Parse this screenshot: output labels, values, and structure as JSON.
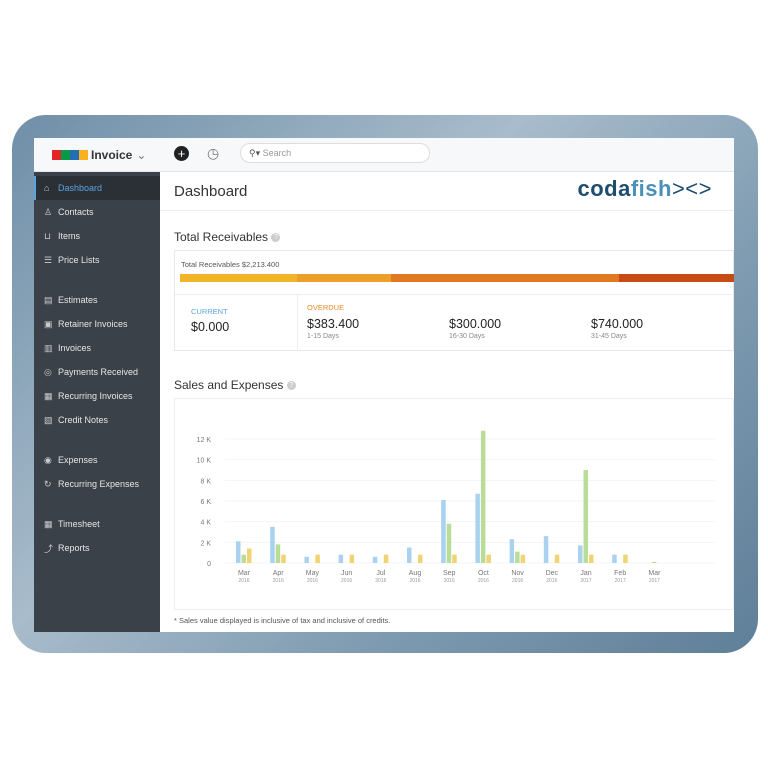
{
  "app": {
    "brand": "Invoice",
    "logo": "codafish><>",
    "search_placeholder": "Search"
  },
  "sidebar": {
    "items": [
      {
        "label": "Dashboard",
        "icon": "home-icon",
        "active": true
      },
      {
        "label": "Contacts",
        "icon": "user-icon"
      },
      {
        "label": "Items",
        "icon": "basket-icon"
      },
      {
        "label": "Price Lists",
        "icon": "list-icon"
      },
      {
        "label": "Estimates",
        "icon": "estimate-icon"
      },
      {
        "label": "Retainer Invoices",
        "icon": "retainer-icon"
      },
      {
        "label": "Invoices",
        "icon": "invoice-icon"
      },
      {
        "label": "Payments Received",
        "icon": "payment-icon"
      },
      {
        "label": "Recurring Invoices",
        "icon": "recurring-icon"
      },
      {
        "label": "Credit Notes",
        "icon": "credit-note-icon"
      },
      {
        "label": "Expenses",
        "icon": "expense-icon"
      },
      {
        "label": "Recurring Expenses",
        "icon": "recurring-expense-icon"
      },
      {
        "label": "Timesheet",
        "icon": "calendar-icon"
      },
      {
        "label": "Reports",
        "icon": "chart-icon"
      }
    ]
  },
  "main": {
    "title": "Dashboard",
    "receivables": {
      "heading": "Total Receivables",
      "total_label": "Total Receivables $2,213.400",
      "current_label": "CURRENT",
      "current_value": "$0.000",
      "overdue_label": "OVERDUE",
      "buckets": [
        {
          "value": "$383.400",
          "range": "1-15 Days"
        },
        {
          "value": "$300.000",
          "range": "16-30 Days"
        },
        {
          "value": "$740.000",
          "range": "31-45 Days"
        }
      ],
      "colors": {
        "current": "#5aa4e0",
        "overdue": "#e8892c"
      }
    },
    "sales": {
      "heading": "Sales and Expenses",
      "footnote": "* Sales value displayed is inclusive of tax and inclusive of credits."
    }
  },
  "chart_data": {
    "type": "bar",
    "ylim": [
      0,
      12000
    ],
    "yticks": [
      "0",
      "2 K",
      "4 K",
      "6 K",
      "8 K",
      "10 K",
      "12 K"
    ],
    "grid": true,
    "categories": [
      [
        "Mar",
        "2016"
      ],
      [
        "Apr",
        "2016"
      ],
      [
        "May",
        "2016"
      ],
      [
        "Jun",
        "2016"
      ],
      [
        "Jul",
        "2016"
      ],
      [
        "Aug",
        "2016"
      ],
      [
        "Sep",
        "2016"
      ],
      [
        "Oct",
        "2016"
      ],
      [
        "Nov",
        "2016"
      ],
      [
        "Dec",
        "2016"
      ],
      [
        "Jan",
        "2017"
      ],
      [
        "Feb",
        "2017"
      ],
      [
        "Mar",
        "2017"
      ]
    ],
    "series": [
      {
        "color": "#a9d1f0",
        "values": [
          2100,
          3500,
          600,
          800,
          600,
          1500,
          6100,
          6700,
          2300,
          2600,
          1700,
          800,
          0
        ]
      },
      {
        "color": "#b9dc98",
        "values": [
          800,
          1800,
          0,
          0,
          0,
          0,
          3800,
          12800,
          1100,
          0,
          9000,
          0,
          100
        ]
      },
      {
        "color": "#f0d373",
        "values": [
          1400,
          800,
          800,
          800,
          800,
          800,
          800,
          800,
          800,
          800,
          800,
          800,
          0
        ]
      }
    ]
  }
}
